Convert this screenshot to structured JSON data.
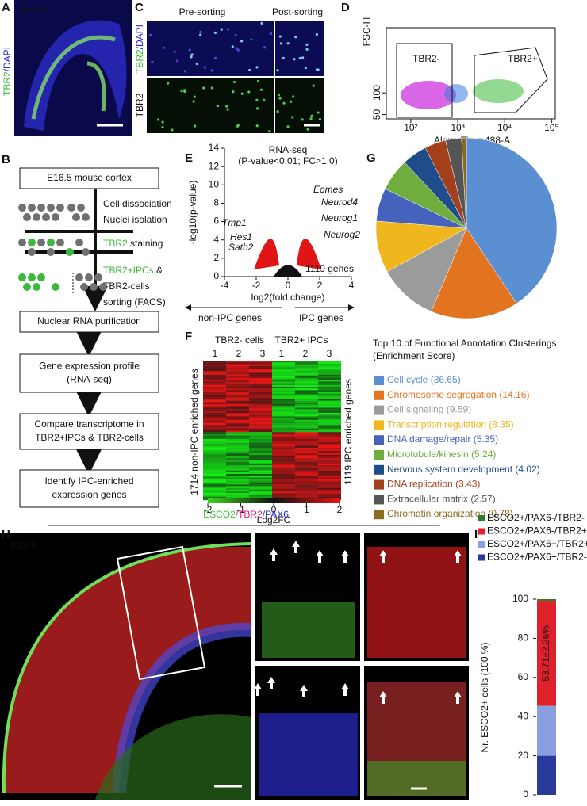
{
  "panels": {
    "a": {
      "letter": "A",
      "stage": "E16.5",
      "stain_green": "TBR2",
      "stain_blue": "/DAPI"
    },
    "b": {
      "letter": "B",
      "boxes": [
        [
          "E16.5 mouse cortex"
        ],
        [
          "Nuclear RNA purification"
        ],
        [
          "Gene expression profile",
          "(RNA-seq)"
        ],
        [
          "Compare transcriptome in",
          "TBR2+IPCs & TBR2-cells"
        ],
        [
          "Identify IPC-enriched",
          "expression genes"
        ]
      ],
      "side": [
        {
          "plain": "Cell dissociation"
        },
        {
          "plain": "Nuclei isolation"
        },
        {
          "green": "TBR2",
          "plain": " staining"
        },
        {
          "green": "TBR2+IPCs",
          "plain": " &"
        },
        {
          "plain": "TBR2-cells"
        },
        {
          "plain": "sorting (FACS)"
        }
      ]
    },
    "c": {
      "letter": "C",
      "pre": "Pre-sorting",
      "post": "Post-sorting",
      "stain_green": "TBR2",
      "stain_blue": "/DAPI",
      "stain_bottom": "TBR2"
    },
    "d": {
      "letter": "D",
      "ylabel": "FSC-H",
      "xlabel": "Alexa Fluor 488-A",
      "gate_neg": "TBR2-",
      "gate_pos": "TBR2+",
      "xscale": "log",
      "xlim": [
        30,
        120000
      ],
      "xticks": [
        {
          "value": 100,
          "label": "10²"
        },
        {
          "value": 1000,
          "label": "10³"
        },
        {
          "value": 10000,
          "label": "10⁴"
        },
        {
          "value": 100000,
          "label": "10⁵"
        }
      ],
      "ylim": [
        40,
        250
      ],
      "yticks": [
        50,
        100
      ]
    },
    "e": {
      "letter": "E",
      "title": "RNA-seq",
      "subtitle": "(P-value<0.01; FC>1.0)",
      "count": "1119 genes",
      "genes_up": [
        "Eomes",
        "Neurod4",
        "Neurog1",
        "Neurog2"
      ],
      "genes_down": [
        "Tmp1",
        "Hes1",
        "Satb2"
      ],
      "xlabel": "log2(fold change)",
      "ylabel": "-log10(p-value)",
      "xlim": [
        -4,
        4
      ],
      "xticks": [
        -4,
        -2,
        0,
        2,
        4
      ],
      "ylim": [
        0,
        14
      ],
      "yticks": [
        0,
        2,
        4,
        6,
        8,
        10,
        12,
        14
      ],
      "left_arrow": "non-IPC genes",
      "right_arrow": "IPC genes"
    },
    "f": {
      "letter": "F",
      "group_neg": "TBR2- cells",
      "group_pos": "TBR2+ IPCs",
      "columns": [
        1,
        2,
        3
      ],
      "left_label": "1714 non-IPC enriched genes",
      "right_label": "1119 IPC enriched genes",
      "colorbar_lim": [
        -2,
        2
      ],
      "colorbar_ticks": [
        -2,
        -1,
        0,
        1,
        2
      ],
      "colorbar_label": "Log2FC"
    },
    "g": {
      "letter": "G"
    },
    "h": {
      "letter": "H",
      "stage": "E15.5",
      "stain_1": "ESCO2",
      "stain_2": "/TBR2",
      "stain_3": "/PAX6"
    },
    "i": {
      "letter": "I"
    }
  },
  "chart_data": [
    {
      "type": "pie",
      "title": "Top 10 of Functional Annotation Clusterings",
      "subtitle": "(Enrichment Score)",
      "categories": [
        "Cell cycle",
        "Chromosome segregation",
        "Cell signaling",
        "Transcription regulation",
        "DNA damage/repair",
        "Microtubule/kinesin",
        "Nervous system development",
        "DNA replication",
        "Extracellular matrix",
        "Chromatin organization"
      ],
      "values": [
        36.65,
        14.16,
        9.59,
        8.35,
        5.35,
        5.24,
        4.02,
        3.43,
        2.57,
        0.78
      ],
      "value_labels": [
        "(36.65)",
        "(14.16)",
        "(9.59)",
        "(8.35)",
        "(5.35)",
        "(5.24)",
        "(4.02)",
        "(3.43)",
        "(2.57)",
        "(0.78)"
      ],
      "colors": [
        "#5a8fd2",
        "#e2731f",
        "#9b9b9b",
        "#f0b61e",
        "#4563bc",
        "#6fae3e",
        "#1f4c8a",
        "#a2401b",
        "#555555",
        "#8c6a1e"
      ]
    },
    {
      "type": "stacked_bar",
      "ylabel": "Nr. ESCO2+ cells (100 %)",
      "annotation": "53.71±2.26%",
      "ylim": [
        0,
        100
      ],
      "yticks": [
        0,
        20,
        40,
        60,
        80,
        100
      ],
      "series": [
        {
          "name": "ESCO2+/PAX6+/TBR2-",
          "color": "#2a3a9a",
          "values": [
            20
          ]
        },
        {
          "name": "ESCO2+/PAX6+/TBR2+",
          "color": "#8a9ee0",
          "values": [
            25.5
          ]
        },
        {
          "name": "ESCO2+/PAX6-/TBR2+",
          "color": "#e0202a",
          "values": [
            53.71
          ]
        },
        {
          "name": "ESCO2+/PAX6-/TBR2-",
          "color": "#2e7a2a",
          "values": [
            0.79
          ]
        }
      ]
    }
  ]
}
